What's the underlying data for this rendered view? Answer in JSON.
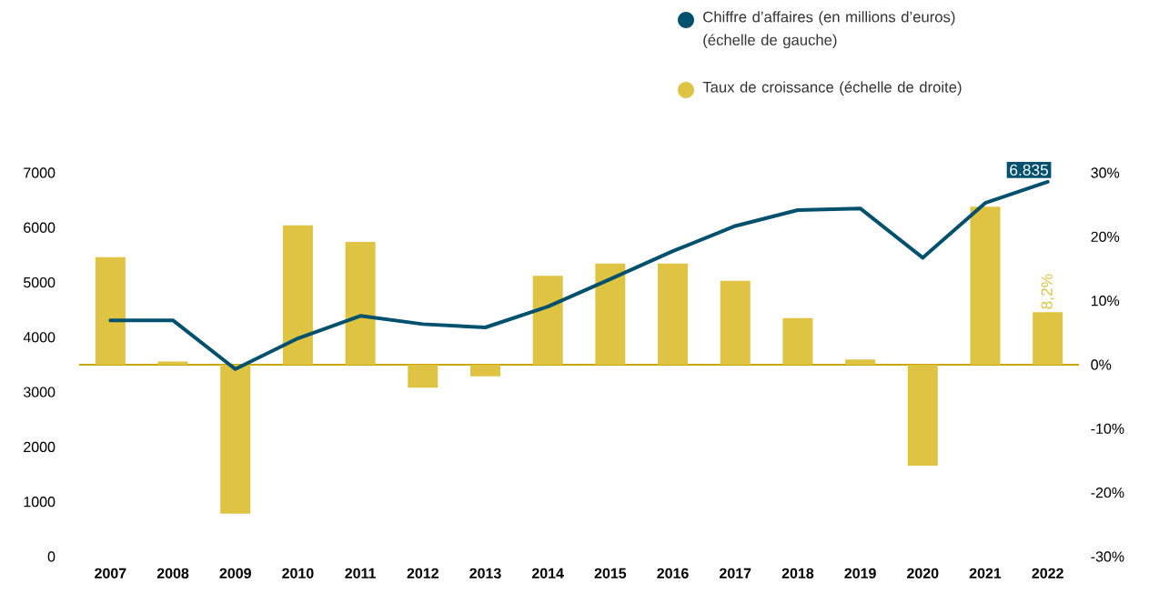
{
  "chart_data": {
    "type": "bar",
    "categories": [
      "2007",
      "2008",
      "2009",
      "2010",
      "2011",
      "2012",
      "2013",
      "2014",
      "2015",
      "2016",
      "2017",
      "2018",
      "2019",
      "2020",
      "2021",
      "2022"
    ],
    "series": [
      {
        "name": "Chiffre d’affaires (en millions d’euros) (échelle de gauche)",
        "type": "line",
        "color": "#00506e",
        "values": [
          4310,
          4310,
          3420,
          3980,
          4390,
          4240,
          4180,
          4560,
          5060,
          5570,
          6030,
          6320,
          6350,
          5450,
          6450,
          6835
        ],
        "value_labels": [
          null,
          null,
          null,
          null,
          null,
          null,
          null,
          null,
          null,
          null,
          null,
          null,
          null,
          null,
          null,
          "6.835"
        ]
      },
      {
        "name": "Taux de croissance (échelle de droite)",
        "axis": "y2",
        "color": "#dfc443",
        "values": [
          16.8,
          0.5,
          -23.3,
          21.8,
          19.2,
          -3.6,
          -1.8,
          13.9,
          15.8,
          15.8,
          13.1,
          7.3,
          0.8,
          -15.8,
          24.7,
          8.2
        ],
        "value_labels": [
          null,
          null,
          null,
          null,
          null,
          null,
          null,
          null,
          null,
          null,
          null,
          null,
          null,
          null,
          null,
          "8,2%"
        ]
      }
    ],
    "ylim": [
      0,
      7000
    ],
    "yticks": [
      0,
      1000,
      2000,
      3000,
      4000,
      5000,
      6000,
      7000
    ],
    "y2lim": [
      -30,
      30
    ],
    "ref_lines": [
      {
        "axis": "y2",
        "value": 0,
        "color": "#c8a800"
      }
    ],
    "y2ticks": [
      {
        "value": -30,
        "label": "-30%"
      },
      {
        "value": -20,
        "label": "-20%"
      },
      {
        "value": -10,
        "label": "-10%"
      },
      {
        "value": 0,
        "label": "0%"
      },
      {
        "value": 10,
        "label": "10%"
      },
      {
        "value": 20,
        "label": "20%"
      },
      {
        "value": 30,
        "label": "30%"
      }
    ],
    "legend": "top right",
    "marker": "none",
    "line_style": "solid",
    "grid": false
  }
}
